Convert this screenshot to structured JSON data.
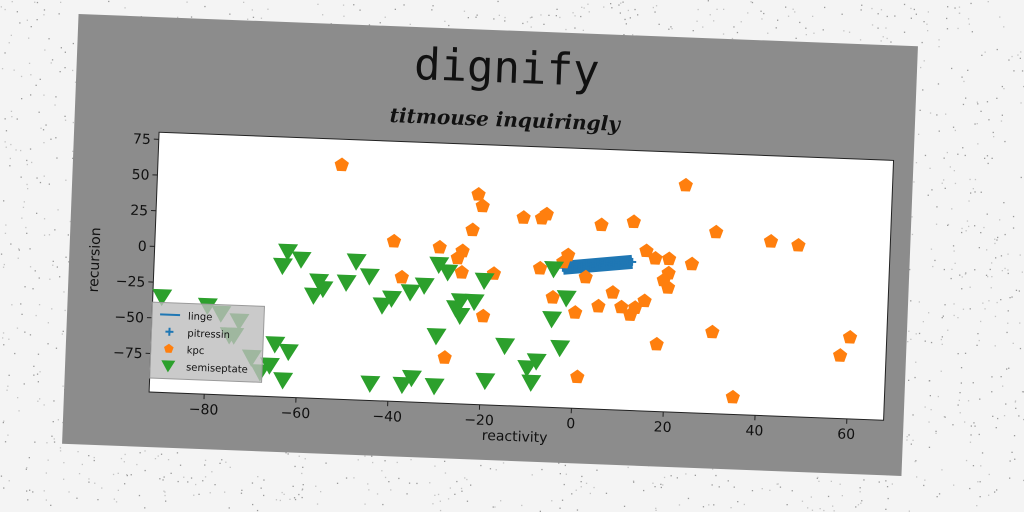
{
  "figure": {
    "title": "dignify"
  },
  "chart_data": {
    "type": "scatter",
    "title": "titmouse inquiringly",
    "xlabel": "reactivity",
    "ylabel": "recursion",
    "xlim": [
      -92,
      68
    ],
    "ylim": [
      -102,
      80
    ],
    "xticks": [
      -80,
      -60,
      -40,
      -20,
      0,
      20,
      40,
      60
    ],
    "yticks": [
      75,
      50,
      25,
      0,
      -25,
      -50,
      -75
    ],
    "grid": false,
    "legend": {
      "position": "lower-left",
      "entries": [
        "linge",
        "pitressin",
        "kpc",
        "semiseptate"
      ]
    },
    "colors": {
      "linge": "#1f77b4",
      "pitressin": "#1f77b4",
      "kpc": "#ff7f0e",
      "semiseptate": "#2ca02c"
    },
    "series": [
      {
        "name": "linge",
        "marker": "line",
        "x": [
          -3,
          12
        ],
        "y": [
          -4,
          2
        ]
      },
      {
        "name": "pitressin",
        "marker": "plus",
        "x": [
          -3,
          -1,
          1,
          3,
          5,
          7,
          9,
          11,
          -2,
          0,
          2,
          4,
          6,
          8,
          10,
          12
        ],
        "y": [
          -4,
          -3,
          -2.5,
          -2,
          -1,
          -0.5,
          0.5,
          1,
          -2,
          -1.5,
          -1,
          0,
          0.5,
          1,
          1.5,
          2
        ]
      },
      {
        "name": "kpc",
        "marker": "pentagon",
        "x": [
          -52,
          -22,
          -21,
          -12,
          -7,
          -8,
          -40,
          -30,
          -23,
          -25,
          -18,
          -3,
          5,
          12,
          15,
          20,
          25,
          30,
          42,
          48,
          23,
          -8,
          -5,
          0,
          5,
          10,
          15,
          18,
          20,
          -38,
          -25,
          -20,
          -28,
          1,
          8,
          12,
          20,
          30,
          35,
          58,
          60,
          2,
          -26,
          -2,
          13,
          19,
          17
        ],
        "y": [
          62,
          45,
          37,
          30,
          33,
          30,
          10,
          7,
          20,
          5,
          -10,
          0,
          27,
          30,
          10,
          5,
          2,
          25,
          20,
          18,
          57,
          -5,
          -25,
          -35,
          -30,
          -30,
          -25,
          -55,
          -15,
          -15,
          -10,
          -40,
          -70,
          -80,
          -20,
          -35,
          -5,
          -45,
          -90,
          -58,
          -45,
          -10,
          0,
          5,
          -30,
          -10,
          5
        ]
      },
      {
        "name": "semiseptate",
        "marker": "triangle-down",
        "x": [
          -90,
          -80,
          -77,
          -74,
          -70,
          -66,
          -63,
          -64,
          -60,
          -63,
          -56,
          -55,
          -50,
          -45,
          -40,
          -36,
          -33,
          -30,
          -28,
          -25,
          -25,
          -20,
          -15,
          -10,
          -8,
          -3,
          -5,
          -5,
          -2,
          -65,
          -73,
          -68,
          -44,
          -37,
          -30,
          -26,
          -19,
          -9,
          -25,
          -22,
          -30,
          -57,
          -48,
          -62,
          -35,
          -75,
          -42
        ],
        "y": [
          -35,
          -40,
          -45,
          -60,
          -75,
          -80,
          -90,
          -10,
          -5,
          0,
          -20,
          -25,
          -20,
          -15,
          -30,
          -25,
          -20,
          -5,
          -10,
          -30,
          -40,
          -15,
          -60,
          -75,
          -70,
          -60,
          -40,
          -5,
          -25,
          -65,
          -50,
          -85,
          -90,
          -90,
          -90,
          -35,
          -85,
          -85,
          -40,
          -30,
          -55,
          -30,
          -5,
          -70,
          -85,
          -60,
          -35
        ]
      }
    ]
  }
}
